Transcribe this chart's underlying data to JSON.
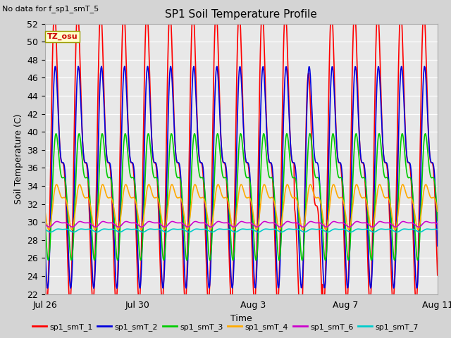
{
  "title": "SP1 Soil Temperature Profile",
  "subtitle": "No data for f_sp1_smT_5",
  "xlabel": "Time",
  "ylabel": "Soil Temperature (C)",
  "ylim": [
    22,
    52
  ],
  "yticks": [
    22,
    24,
    26,
    28,
    30,
    32,
    34,
    36,
    38,
    40,
    42,
    44,
    46,
    48,
    50,
    52
  ],
  "xtick_labels": [
    "Jul 26",
    "Jul 30",
    "Aug 3",
    "Aug 7",
    "Aug 11"
  ],
  "xtick_positions": [
    0,
    4,
    9,
    13,
    17
  ],
  "xlim": [
    0,
    17
  ],
  "bg_color": "#d4d4d4",
  "plot_bg_color": "#e8e8e8",
  "tz_label": "TZ_osu",
  "series": {
    "sp1_smT_1": {
      "color": "#ff0000",
      "lw": 1.2
    },
    "sp1_smT_2": {
      "color": "#0000dd",
      "lw": 1.2
    },
    "sp1_smT_3": {
      "color": "#00cc00",
      "lw": 1.2
    },
    "sp1_smT_4": {
      "color": "#ffaa00",
      "lw": 1.2
    },
    "sp1_smT_6": {
      "color": "#cc00cc",
      "lw": 1.2
    },
    "sp1_smT_7": {
      "color": "#00cccc",
      "lw": 1.2
    }
  },
  "smT_1": {
    "base": 37.0,
    "amp": 12.5,
    "phase": 1.5
  },
  "smT_2": {
    "base": 35.5,
    "amp": 9.5,
    "phase": 1.8
  },
  "smT_3": {
    "base": 33.5,
    "amp": 5.5,
    "phase": 2.1
  },
  "smT_4": {
    "base": 32.0,
    "amp": 2.0,
    "phase": 2.3
  },
  "smT_6": {
    "base": 29.8,
    "amp": 0.25,
    "phase": 2.5
  },
  "smT_7": {
    "base": 29.1,
    "amp": 0.15,
    "phase": 3.0
  }
}
